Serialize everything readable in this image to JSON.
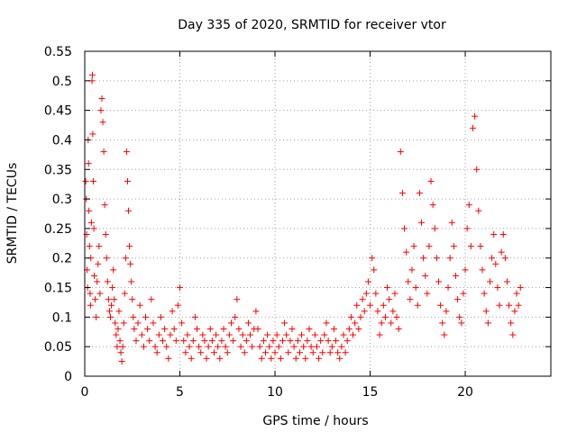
{
  "chart_data": {
    "type": "scatter",
    "title": "Day 335 of 2020, SRMTID for receiver vtor",
    "xlabel": "GPS time / hours",
    "ylabel": "SRMTID / TECUs",
    "xlim": [
      0,
      24.5
    ],
    "ylim": [
      0,
      0.55
    ],
    "xticks": [
      0,
      5,
      10,
      15,
      20
    ],
    "yticks": [
      0,
      0.05,
      0.1,
      0.15,
      0.2,
      0.25,
      0.3,
      0.35,
      0.4,
      0.45,
      0.5,
      0.55
    ],
    "xtick_labels": [
      "0",
      "5",
      "10",
      "15",
      "20"
    ],
    "ytick_labels": [
      "0",
      "0.05",
      "0.1",
      "0.15",
      "0.2",
      "0.25",
      "0.3",
      "0.35",
      "0.4",
      "0.45",
      "0.5",
      "0.55"
    ],
    "grid": true,
    "marker": "+",
    "color": "#ff0000",
    "series": [
      {
        "name": "SRMTID",
        "points": [
          [
            0.05,
            0.33
          ],
          [
            0.08,
            0.3
          ],
          [
            0.1,
            0.24
          ],
          [
            0.12,
            0.18
          ],
          [
            0.15,
            0.15
          ],
          [
            0.18,
            0.4
          ],
          [
            0.2,
            0.36
          ],
          [
            0.22,
            0.28
          ],
          [
            0.25,
            0.22
          ],
          [
            0.28,
            0.14
          ],
          [
            0.3,
            0.12
          ],
          [
            0.32,
            0.2
          ],
          [
            0.35,
            0.26
          ],
          [
            0.38,
            0.5
          ],
          [
            0.4,
            0.51
          ],
          [
            0.42,
            0.41
          ],
          [
            0.45,
            0.33
          ],
          [
            0.48,
            0.25
          ],
          [
            0.5,
            0.17
          ],
          [
            0.55,
            0.13
          ],
          [
            0.6,
            0.1
          ],
          [
            0.65,
            0.16
          ],
          [
            0.7,
            0.19
          ],
          [
            0.75,
            0.22
          ],
          [
            0.8,
            0.14
          ],
          [
            0.85,
            0.45
          ],
          [
            0.9,
            0.47
          ],
          [
            0.95,
            0.43
          ],
          [
            1.0,
            0.38
          ],
          [
            1.05,
            0.29
          ],
          [
            1.1,
            0.24
          ],
          [
            1.15,
            0.2
          ],
          [
            1.2,
            0.16
          ],
          [
            1.25,
            0.13
          ],
          [
            1.3,
            0.11
          ],
          [
            1.35,
            0.1
          ],
          [
            1.4,
            0.12
          ],
          [
            1.45,
            0.15
          ],
          [
            1.5,
            0.18
          ],
          [
            1.55,
            0.13
          ],
          [
            1.6,
            0.09
          ],
          [
            1.65,
            0.07
          ],
          [
            1.7,
            0.05
          ],
          [
            1.75,
            0.08
          ],
          [
            1.8,
            0.11
          ],
          [
            1.85,
            0.06
          ],
          [
            1.9,
            0.04
          ],
          [
            1.95,
            0.025
          ],
          [
            2.0,
            0.05
          ],
          [
            2.05,
            0.09
          ],
          [
            2.1,
            0.14
          ],
          [
            2.15,
            0.2
          ],
          [
            2.2,
            0.38
          ],
          [
            2.25,
            0.33
          ],
          [
            2.3,
            0.28
          ],
          [
            2.35,
            0.22
          ],
          [
            2.4,
            0.19
          ],
          [
            2.45,
            0.16
          ],
          [
            2.5,
            0.13
          ],
          [
            2.55,
            0.1
          ],
          [
            2.6,
            0.08
          ],
          [
            2.7,
            0.06
          ],
          [
            2.8,
            0.09
          ],
          [
            2.9,
            0.12
          ],
          [
            3.0,
            0.07
          ],
          [
            3.1,
            0.05
          ],
          [
            3.2,
            0.1
          ],
          [
            3.3,
            0.08
          ],
          [
            3.4,
            0.06
          ],
          [
            3.5,
            0.13
          ],
          [
            3.6,
            0.09
          ],
          [
            3.7,
            0.05
          ],
          [
            3.8,
            0.04
          ],
          [
            3.9,
            0.07
          ],
          [
            4.0,
            0.1
          ],
          [
            4.1,
            0.06
          ],
          [
            4.2,
            0.08
          ],
          [
            4.3,
            0.05
          ],
          [
            4.4,
            0.03
          ],
          [
            4.5,
            0.07
          ],
          [
            4.6,
            0.11
          ],
          [
            4.7,
            0.08
          ],
          [
            4.8,
            0.06
          ],
          [
            4.9,
            0.12
          ],
          [
            5.0,
            0.15
          ],
          [
            5.1,
            0.09
          ],
          [
            5.2,
            0.06
          ],
          [
            5.3,
            0.04
          ],
          [
            5.4,
            0.07
          ],
          [
            5.5,
            0.05
          ],
          [
            5.6,
            0.03
          ],
          [
            5.7,
            0.06
          ],
          [
            5.8,
            0.1
          ],
          [
            5.9,
            0.08
          ],
          [
            6.0,
            0.05
          ],
          [
            6.1,
            0.04
          ],
          [
            6.2,
            0.07
          ],
          [
            6.3,
            0.06
          ],
          [
            6.4,
            0.03
          ],
          [
            6.5,
            0.05
          ],
          [
            6.6,
            0.08
          ],
          [
            6.7,
            0.06
          ],
          [
            6.8,
            0.04
          ],
          [
            6.9,
            0.07
          ],
          [
            7.0,
            0.05
          ],
          [
            7.1,
            0.03
          ],
          [
            7.2,
            0.06
          ],
          [
            7.3,
            0.08
          ],
          [
            7.4,
            0.05
          ],
          [
            7.5,
            0.04
          ],
          [
            7.6,
            0.07
          ],
          [
            7.7,
            0.09
          ],
          [
            7.8,
            0.06
          ],
          [
            7.9,
            0.1
          ],
          [
            8.0,
            0.13
          ],
          [
            8.1,
            0.08
          ],
          [
            8.2,
            0.05
          ],
          [
            8.3,
            0.07
          ],
          [
            8.4,
            0.04
          ],
          [
            8.5,
            0.06
          ],
          [
            8.6,
            0.09
          ],
          [
            8.7,
            0.07
          ],
          [
            8.8,
            0.05
          ],
          [
            8.9,
            0.08
          ],
          [
            9.0,
            0.11
          ],
          [
            9.1,
            0.08
          ],
          [
            9.2,
            0.05
          ],
          [
            9.3,
            0.03
          ],
          [
            9.4,
            0.06
          ],
          [
            9.5,
            0.04
          ],
          [
            9.6,
            0.07
          ],
          [
            9.7,
            0.05
          ],
          [
            9.8,
            0.03
          ],
          [
            9.9,
            0.06
          ],
          [
            10.0,
            0.04
          ],
          [
            10.1,
            0.07
          ],
          [
            10.2,
            0.05
          ],
          [
            10.3,
            0.03
          ],
          [
            10.4,
            0.06
          ],
          [
            10.5,
            0.09
          ],
          [
            10.6,
            0.07
          ],
          [
            10.7,
            0.04
          ],
          [
            10.8,
            0.06
          ],
          [
            10.9,
            0.08
          ],
          [
            11.0,
            0.05
          ],
          [
            11.1,
            0.03
          ],
          [
            11.2,
            0.06
          ],
          [
            11.3,
            0.04
          ],
          [
            11.4,
            0.07
          ],
          [
            11.5,
            0.05
          ],
          [
            11.6,
            0.03
          ],
          [
            11.7,
            0.06
          ],
          [
            11.8,
            0.08
          ],
          [
            11.9,
            0.05
          ],
          [
            12.0,
            0.04
          ],
          [
            12.1,
            0.07
          ],
          [
            12.2,
            0.05
          ],
          [
            12.3,
            0.03
          ],
          [
            12.4,
            0.06
          ],
          [
            12.5,
            0.04
          ],
          [
            12.6,
            0.07
          ],
          [
            12.7,
            0.09
          ],
          [
            12.8,
            0.06
          ],
          [
            12.9,
            0.04
          ],
          [
            13.0,
            0.05
          ],
          [
            13.1,
            0.08
          ],
          [
            13.2,
            0.06
          ],
          [
            13.3,
            0.04
          ],
          [
            13.4,
            0.03
          ],
          [
            13.5,
            0.05
          ],
          [
            13.6,
            0.07
          ],
          [
            13.7,
            0.04
          ],
          [
            13.8,
            0.06
          ],
          [
            13.9,
            0.08
          ],
          [
            14.0,
            0.1
          ],
          [
            14.1,
            0.07
          ],
          [
            14.2,
            0.09
          ],
          [
            14.3,
            0.12
          ],
          [
            14.4,
            0.08
          ],
          [
            14.5,
            0.1
          ],
          [
            14.6,
            0.13
          ],
          [
            14.7,
            0.11
          ],
          [
            14.8,
            0.14
          ],
          [
            14.9,
            0.16
          ],
          [
            15.0,
            0.12
          ],
          [
            15.1,
            0.2
          ],
          [
            15.2,
            0.18
          ],
          [
            15.3,
            0.14
          ],
          [
            15.4,
            0.11
          ],
          [
            15.5,
            0.07
          ],
          [
            15.6,
            0.09
          ],
          [
            15.7,
            0.12
          ],
          [
            15.8,
            0.1
          ],
          [
            15.9,
            0.15
          ],
          [
            16.0,
            0.13
          ],
          [
            16.1,
            0.09
          ],
          [
            16.2,
            0.11
          ],
          [
            16.3,
            0.14
          ],
          [
            16.4,
            0.1
          ],
          [
            16.5,
            0.08
          ],
          [
            16.6,
            0.38
          ],
          [
            16.7,
            0.31
          ],
          [
            16.8,
            0.25
          ],
          [
            16.9,
            0.21
          ],
          [
            17.0,
            0.16
          ],
          [
            17.1,
            0.13
          ],
          [
            17.2,
            0.18
          ],
          [
            17.3,
            0.22
          ],
          [
            17.4,
            0.15
          ],
          [
            17.5,
            0.12
          ],
          [
            17.6,
            0.31
          ],
          [
            17.7,
            0.26
          ],
          [
            17.8,
            0.2
          ],
          [
            17.9,
            0.17
          ],
          [
            18.0,
            0.14
          ],
          [
            18.1,
            0.22
          ],
          [
            18.2,
            0.33
          ],
          [
            18.3,
            0.29
          ],
          [
            18.4,
            0.25
          ],
          [
            18.5,
            0.2
          ],
          [
            18.6,
            0.16
          ],
          [
            18.7,
            0.12
          ],
          [
            18.8,
            0.09
          ],
          [
            18.9,
            0.07
          ],
          [
            19.0,
            0.11
          ],
          [
            19.1,
            0.15
          ],
          [
            19.2,
            0.2
          ],
          [
            19.3,
            0.26
          ],
          [
            19.4,
            0.22
          ],
          [
            19.5,
            0.17
          ],
          [
            19.6,
            0.13
          ],
          [
            19.7,
            0.1
          ],
          [
            19.8,
            0.09
          ],
          [
            19.9,
            0.14
          ],
          [
            20.0,
            0.18
          ],
          [
            20.1,
            0.25
          ],
          [
            20.2,
            0.29
          ],
          [
            20.3,
            0.22
          ],
          [
            20.4,
            0.42
          ],
          [
            20.5,
            0.44
          ],
          [
            20.6,
            0.35
          ],
          [
            20.7,
            0.28
          ],
          [
            20.8,
            0.22
          ],
          [
            20.9,
            0.18
          ],
          [
            21.0,
            0.14
          ],
          [
            21.1,
            0.11
          ],
          [
            21.2,
            0.09
          ],
          [
            21.3,
            0.16
          ],
          [
            21.4,
            0.2
          ],
          [
            21.5,
            0.24
          ],
          [
            21.6,
            0.19
          ],
          [
            21.7,
            0.15
          ],
          [
            21.8,
            0.12
          ],
          [
            21.9,
            0.21
          ],
          [
            22.0,
            0.24
          ],
          [
            22.1,
            0.2
          ],
          [
            22.2,
            0.16
          ],
          [
            22.3,
            0.12
          ],
          [
            22.4,
            0.09
          ],
          [
            22.5,
            0.07
          ],
          [
            22.6,
            0.11
          ],
          [
            22.7,
            0.14
          ],
          [
            22.8,
            0.12
          ],
          [
            22.9,
            0.15
          ]
        ]
      }
    ]
  }
}
